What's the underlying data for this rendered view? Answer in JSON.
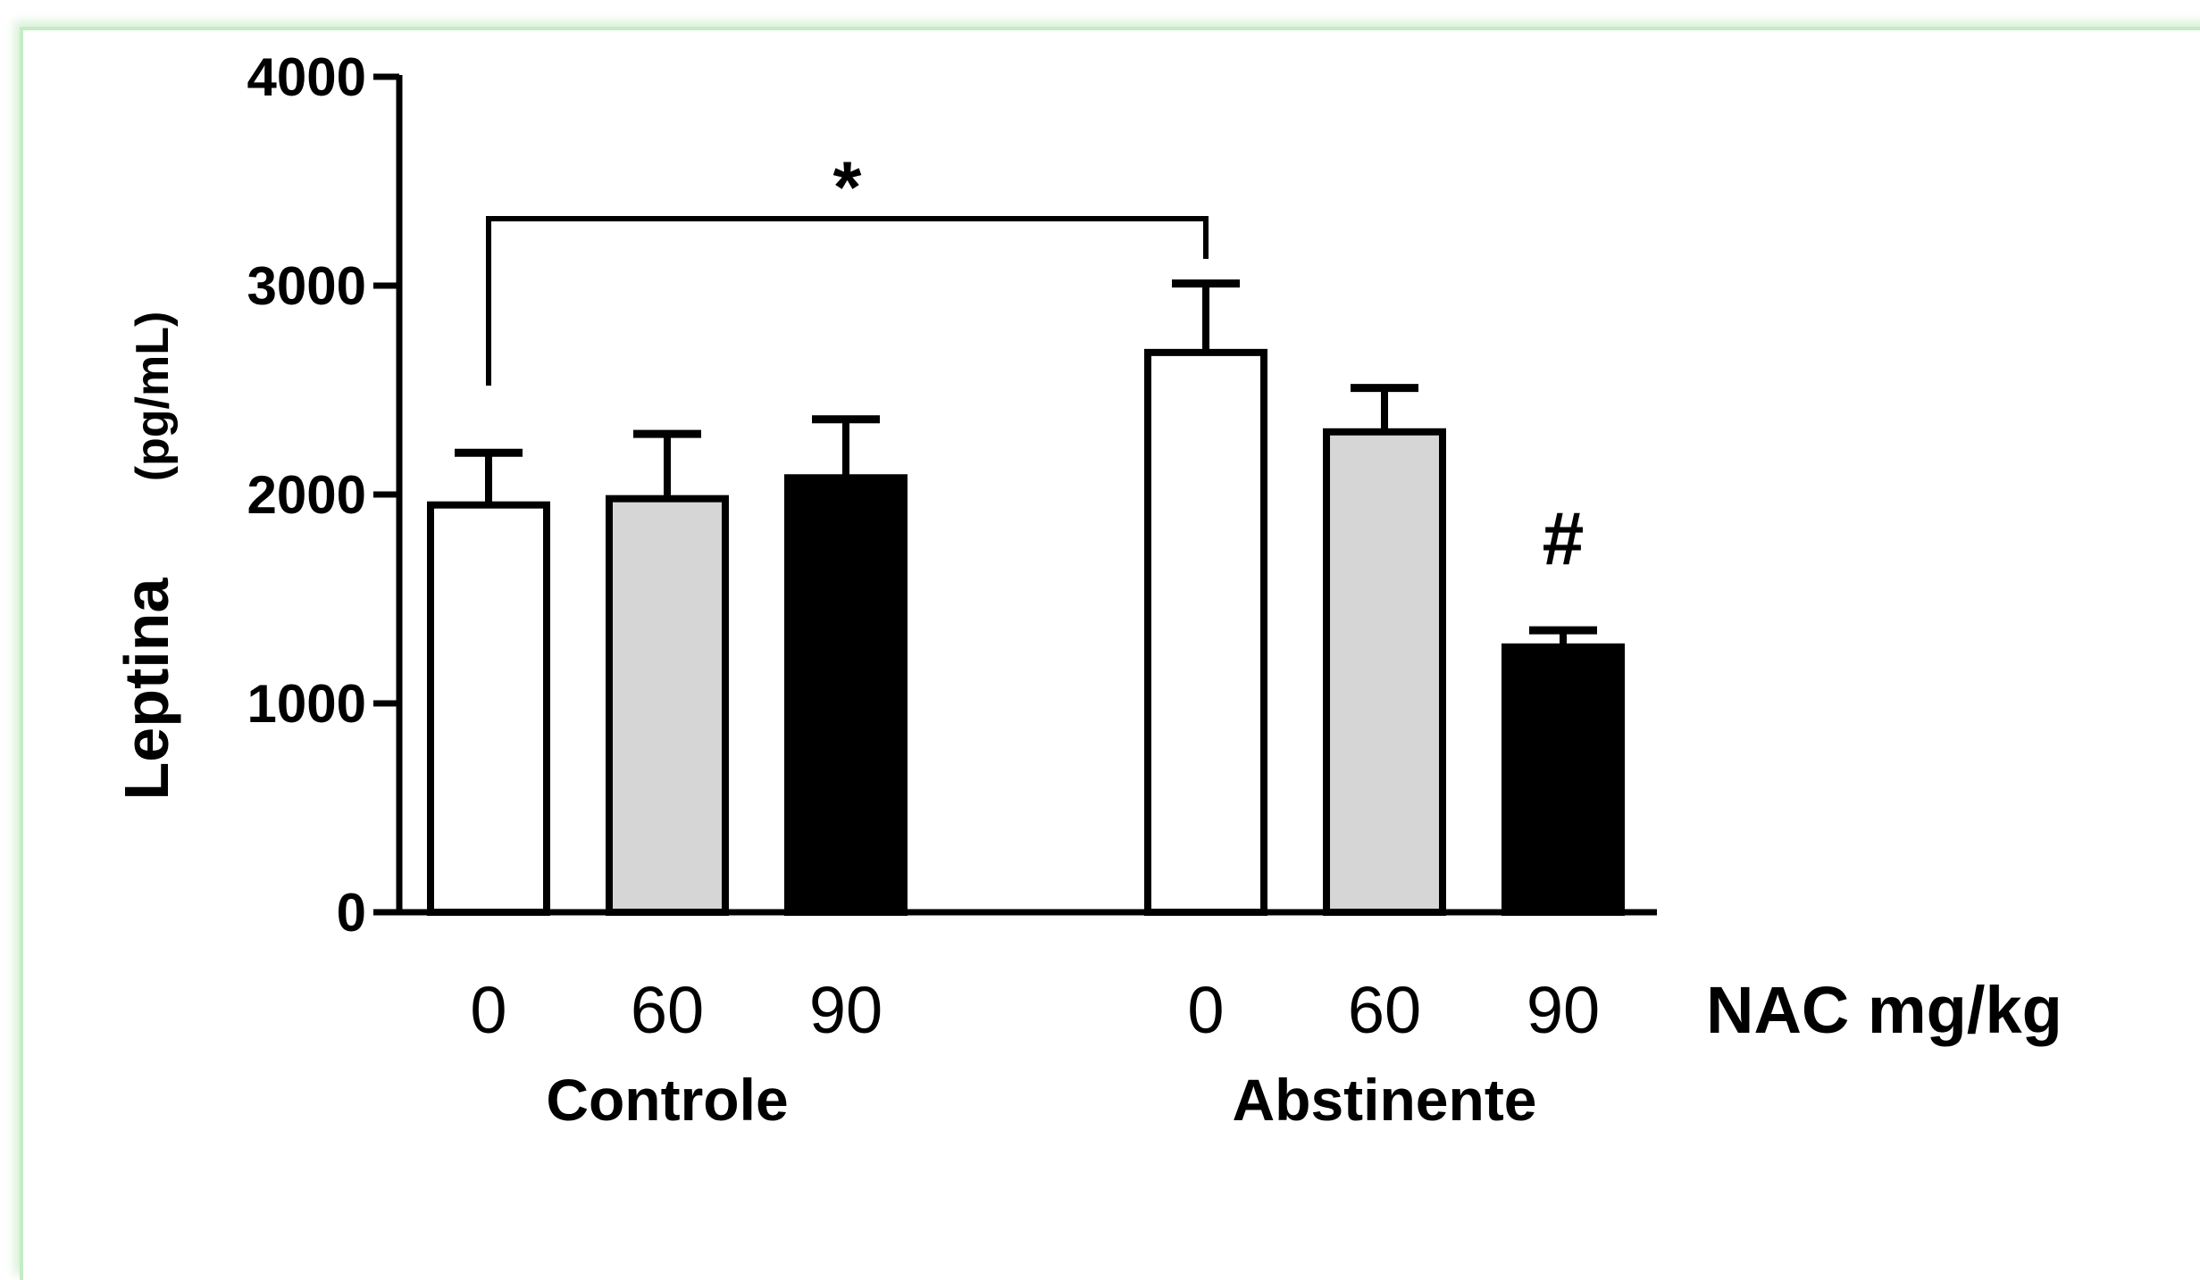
{
  "chart_data": {
    "type": "bar",
    "ylabel": "Leptina",
    "ylabel_unit": "(pg/mL)",
    "ylim": [
      0,
      4000
    ],
    "yticks": [
      "0",
      "1000",
      "2000",
      "3000",
      "4000"
    ],
    "x_unit_label": "NAC mg/kg",
    "grid": false,
    "groups": [
      {
        "name": "Controle",
        "categories": [
          "0",
          "60",
          "90"
        ],
        "values": [
          1950,
          1980,
          2080
        ],
        "errors": [
          250,
          310,
          280
        ],
        "fills": [
          "#ffffff",
          "#d6d6d6",
          "#000000"
        ]
      },
      {
        "name": "Abstinente",
        "categories": [
          "0",
          "60",
          "90"
        ],
        "values": [
          2680,
          2300,
          1270
        ],
        "errors": [
          330,
          210,
          80
        ],
        "fills": [
          "#ffffff",
          "#d6d6d6",
          "#000000"
        ]
      }
    ],
    "annotations": {
      "bracket_symbol": "*",
      "bar_symbol": "#"
    }
  }
}
